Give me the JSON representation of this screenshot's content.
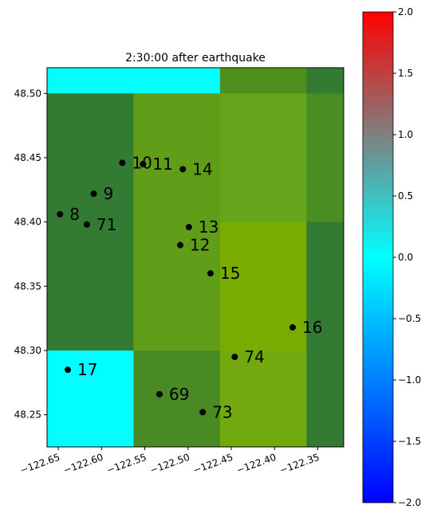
{
  "chart_data": {
    "type": "heatmap",
    "title": "2:30:00 after earthquake",
    "xlabel": "",
    "ylabel": "",
    "xlim": [
      -122.663,
      -122.32
    ],
    "ylim": [
      48.225,
      48.52
    ],
    "x_ticks": [
      -122.65,
      -122.6,
      -122.55,
      -122.5,
      -122.45,
      -122.4,
      -122.35
    ],
    "x_tick_labels": [
      "−122.65",
      "−122.60",
      "−122.55",
      "−122.50",
      "−122.45",
      "−122.40",
      "−122.35"
    ],
    "y_ticks": [
      48.25,
      48.3,
      48.35,
      48.4,
      48.45,
      48.5
    ],
    "y_tick_labels": [
      "48.25",
      "48.30",
      "48.35",
      "48.40",
      "48.45",
      "48.50"
    ],
    "cells": [
      {
        "x0": -122.663,
        "x1": -122.463,
        "y0": 48.5,
        "y1": 48.52,
        "value": 0.0,
        "color": "#00ffff"
      },
      {
        "x0": -122.463,
        "x1": -122.363,
        "y0": 48.5,
        "y1": 48.52,
        "value": 0.8,
        "color": "#4f8f1c"
      },
      {
        "x0": -122.363,
        "x1": -122.32,
        "y0": 48.5,
        "y1": 48.52,
        "value": 0.7,
        "color": "#337a33"
      },
      {
        "x0": -122.663,
        "x1": -122.563,
        "y0": 48.3,
        "y1": 48.5,
        "value": 0.7,
        "color": "#337a33"
      },
      {
        "x0": -122.563,
        "x1": -122.463,
        "y0": 48.3,
        "y1": 48.5,
        "value": 0.9,
        "color": "#609e1a"
      },
      {
        "x0": -122.463,
        "x1": -122.363,
        "y0": 48.4,
        "y1": 48.5,
        "value": 0.95,
        "color": "#66a51b"
      },
      {
        "x0": -122.363,
        "x1": -122.32,
        "y0": 48.4,
        "y1": 48.5,
        "value": 0.8,
        "color": "#4a8e22"
      },
      {
        "x0": -122.463,
        "x1": -122.363,
        "y0": 48.3,
        "y1": 48.4,
        "value": 1.05,
        "color": "#78ac00"
      },
      {
        "x0": -122.363,
        "x1": -122.32,
        "y0": 48.3,
        "y1": 48.4,
        "value": 0.7,
        "color": "#337a33"
      },
      {
        "x0": -122.663,
        "x1": -122.563,
        "y0": 48.225,
        "y1": 48.3,
        "value": 0.0,
        "color": "#00ffff"
      },
      {
        "x0": -122.563,
        "x1": -122.463,
        "y0": 48.225,
        "y1": 48.3,
        "value": 0.8,
        "color": "#4a8a24"
      },
      {
        "x0": -122.463,
        "x1": -122.363,
        "y0": 48.225,
        "y1": 48.3,
        "value": 1.0,
        "color": "#72a90f"
      },
      {
        "x0": -122.363,
        "x1": -122.32,
        "y0": 48.225,
        "y1": 48.3,
        "value": 0.7,
        "color": "#337a33"
      }
    ],
    "points": [
      {
        "label": "10",
        "x": -122.576,
        "y": 48.446
      },
      {
        "label": "11",
        "x": -122.552,
        "y": 48.445
      },
      {
        "label": "14",
        "x": -122.506,
        "y": 48.441
      },
      {
        "label": "9",
        "x": -122.609,
        "y": 48.422
      },
      {
        "label": "8",
        "x": -122.648,
        "y": 48.406
      },
      {
        "label": "71",
        "x": -122.617,
        "y": 48.398
      },
      {
        "label": "13",
        "x": -122.499,
        "y": 48.396
      },
      {
        "label": "12",
        "x": -122.509,
        "y": 48.382
      },
      {
        "label": "15",
        "x": -122.474,
        "y": 48.36
      },
      {
        "label": "16",
        "x": -122.379,
        "y": 48.318
      },
      {
        "label": "74",
        "x": -122.446,
        "y": 48.295
      },
      {
        "label": "17",
        "x": -122.639,
        "y": 48.285
      },
      {
        "label": "69",
        "x": -122.533,
        "y": 48.266
      },
      {
        "label": "73",
        "x": -122.483,
        "y": 48.252
      }
    ],
    "colorbar": {
      "min": -2.0,
      "max": 2.0,
      "ticks": [
        2.0,
        1.5,
        1.0,
        0.5,
        0.0,
        -0.5,
        -1.0,
        -1.5,
        -2.0
      ],
      "tick_labels": [
        "2.0",
        "1.5",
        "1.0",
        "0.5",
        "0.0",
        "−0.5",
        "−1.0",
        "−1.5",
        "−2.0"
      ],
      "colors": [
        "#0000ff",
        "#00ffff",
        "#ff0000"
      ]
    }
  }
}
